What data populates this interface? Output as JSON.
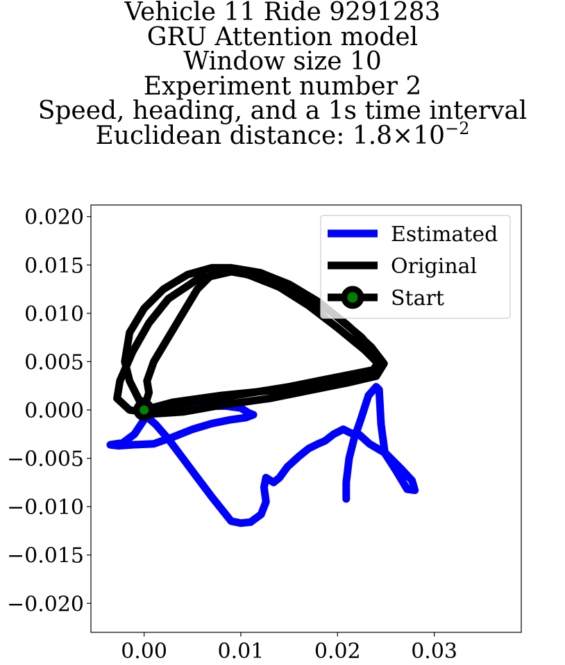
{
  "chart_data": {
    "type": "line",
    "title_lines": [
      "Vehicle 11 Ride 9291283",
      "GRU Attention model",
      "Window size 10",
      "Experiment number 2",
      "Speed, heading, and a 1s time interval"
    ],
    "title_distance": {
      "prefix": "Euclidean distance: ",
      "mantissa": "1.8",
      "times": "×",
      "base": "10",
      "exponent": "−2"
    },
    "xlim": [
      -0.0055,
      0.039
    ],
    "ylim": [
      -0.023,
      0.0212
    ],
    "xticks": [
      0.0,
      0.01,
      0.02,
      0.03
    ],
    "xtick_labels": [
      "0.00",
      "0.01",
      "0.02",
      "0.03"
    ],
    "yticks": [
      0.02,
      0.015,
      0.01,
      0.005,
      0.0,
      -0.005,
      -0.01,
      -0.015,
      -0.02
    ],
    "ytick_labels": [
      "0.020",
      "0.015",
      "0.010",
      "0.005",
      "0.000",
      "−0.005",
      "−0.010",
      "−0.015",
      "−0.020"
    ],
    "grid": false,
    "legend_position": "top-right",
    "series": [
      {
        "name": "Estimated",
        "color": "#0000ff",
        "points": [
          [
            0.0209,
            -0.0092
          ],
          [
            0.0209,
            -0.0075
          ],
          [
            0.0212,
            -0.005
          ],
          [
            0.0217,
            -0.003
          ],
          [
            0.0224,
            -0.001
          ],
          [
            0.0232,
            0.0015
          ],
          [
            0.024,
            0.0024
          ],
          [
            0.0243,
            0.0021
          ],
          [
            0.0245,
            -0.0015
          ],
          [
            0.0249,
            -0.0045
          ],
          [
            0.026,
            -0.0062
          ],
          [
            0.0272,
            -0.0082
          ],
          [
            0.028,
            -0.0083
          ],
          [
            0.0277,
            -0.0073
          ],
          [
            0.0265,
            -0.006
          ],
          [
            0.025,
            -0.0045
          ],
          [
            0.0233,
            -0.0035
          ],
          [
            0.0222,
            -0.0025
          ],
          [
            0.0214,
            -0.0024
          ],
          [
            0.0206,
            -0.002
          ],
          [
            0.0196,
            -0.0025
          ],
          [
            0.0187,
            -0.0032
          ],
          [
            0.018,
            -0.0035
          ],
          [
            0.017,
            -0.004
          ],
          [
            0.016,
            -0.0048
          ],
          [
            0.0148,
            -0.0059
          ],
          [
            0.014,
            -0.007
          ],
          [
            0.0134,
            -0.0075
          ],
          [
            0.0126,
            -0.007
          ],
          [
            0.0124,
            -0.008
          ],
          [
            0.0126,
            -0.0095
          ],
          [
            0.0121,
            -0.0108
          ],
          [
            0.011,
            -0.0116
          ],
          [
            0.01,
            -0.0117
          ],
          [
            0.009,
            -0.0115
          ],
          [
            0.0082,
            -0.0105
          ],
          [
            0.007,
            -0.009
          ],
          [
            0.0055,
            -0.007
          ],
          [
            0.004,
            -0.005
          ],
          [
            0.0025,
            -0.003
          ],
          [
            0.0012,
            -0.0015
          ],
          [
            0.0004,
            -0.0008
          ],
          [
            0.0002,
            -0.0008
          ],
          [
            0.0,
            -0.001
          ],
          [
            -0.001,
            -0.0025
          ],
          [
            -0.0022,
            -0.0034
          ],
          [
            -0.0035,
            -0.0036
          ],
          [
            -0.0026,
            -0.0037
          ],
          [
            -0.0012,
            -0.0036
          ],
          [
            0.001,
            -0.0035
          ],
          [
            0.003,
            -0.0028
          ],
          [
            0.005,
            -0.002
          ],
          [
            0.007,
            -0.0014
          ],
          [
            0.009,
            -0.001
          ],
          [
            0.0105,
            -0.0008
          ],
          [
            0.0113,
            -0.0005
          ],
          [
            0.0108,
            -0.0003
          ],
          [
            0.01,
            0.0002
          ],
          [
            0.0085,
            0.0004
          ],
          [
            0.006,
            0.0004
          ],
          [
            0.003,
            0.0
          ],
          [
            0.0012,
            -0.0003
          ],
          [
            0.0003,
            -0.0003
          ]
        ]
      },
      {
        "name": "Original",
        "color": "#000000",
        "points": [
          [
            0.0,
            0.0
          ],
          [
            0.003,
            0.0008
          ],
          [
            0.008,
            0.0015
          ],
          [
            0.013,
            0.002
          ],
          [
            0.018,
            0.003
          ],
          [
            0.022,
            0.0038
          ],
          [
            0.024,
            0.0042
          ],
          [
            0.0244,
            0.0046
          ],
          [
            0.0228,
            0.0062
          ],
          [
            0.02,
            0.0085
          ],
          [
            0.017,
            0.0108
          ],
          [
            0.014,
            0.0127
          ],
          [
            0.011,
            0.0139
          ],
          [
            0.009,
            0.0145
          ],
          [
            0.007,
            0.014
          ],
          [
            0.0055,
            0.0125
          ],
          [
            0.004,
            0.01
          ],
          [
            0.0025,
            0.0075
          ],
          [
            0.001,
            0.005
          ],
          [
            0.0003,
            0.003
          ],
          [
            0.0005,
            0.0018
          ],
          [
            0.0002,
            0.0008
          ],
          [
            -0.0005,
            0.001
          ],
          [
            -0.0015,
            0.003
          ],
          [
            -0.002,
            0.005
          ],
          [
            -0.0015,
            0.008
          ],
          [
            0.0,
            0.0105
          ],
          [
            0.002,
            0.0125
          ],
          [
            0.0045,
            0.014
          ],
          [
            0.007,
            0.0147
          ],
          [
            0.009,
            0.0147
          ],
          [
            0.012,
            0.0142
          ],
          [
            0.015,
            0.013
          ],
          [
            0.018,
            0.0112
          ],
          [
            0.021,
            0.0088
          ],
          [
            0.0235,
            0.0065
          ],
          [
            0.0248,
            0.0048
          ],
          [
            0.024,
            0.0035
          ],
          [
            0.021,
            0.0028
          ],
          [
            0.017,
            0.002
          ],
          [
            0.013,
            0.0012
          ],
          [
            0.008,
            0.0005
          ],
          [
            0.004,
            -0.0002
          ],
          [
            0.001,
            -0.0004
          ],
          [
            -0.0015,
            0.0
          ],
          [
            -0.0028,
            0.0012
          ],
          [
            -0.0025,
            0.003
          ],
          [
            -0.0012,
            0.006
          ],
          [
            0.0005,
            0.009
          ],
          [
            0.0025,
            0.0115
          ],
          [
            0.0055,
            0.0135
          ],
          [
            0.009,
            0.0143
          ],
          [
            0.0125,
            0.0137
          ],
          [
            0.016,
            0.0122
          ],
          [
            0.0195,
            0.01
          ],
          [
            0.0225,
            0.0075
          ],
          [
            0.0244,
            0.0052
          ],
          [
            0.0236,
            0.004
          ],
          [
            0.02,
            0.0032
          ],
          [
            0.015,
            0.0024
          ],
          [
            0.01,
            0.0016
          ],
          [
            0.005,
            0.0008
          ],
          [
            0.0015,
            0.0001
          ],
          [
            0.0,
            0.0
          ]
        ]
      }
    ],
    "start": {
      "name": "Start",
      "point": [
        0.0,
        0.0
      ],
      "marker_edge": "#000000",
      "marker_face": "#008000",
      "line_color": "#000000"
    }
  }
}
